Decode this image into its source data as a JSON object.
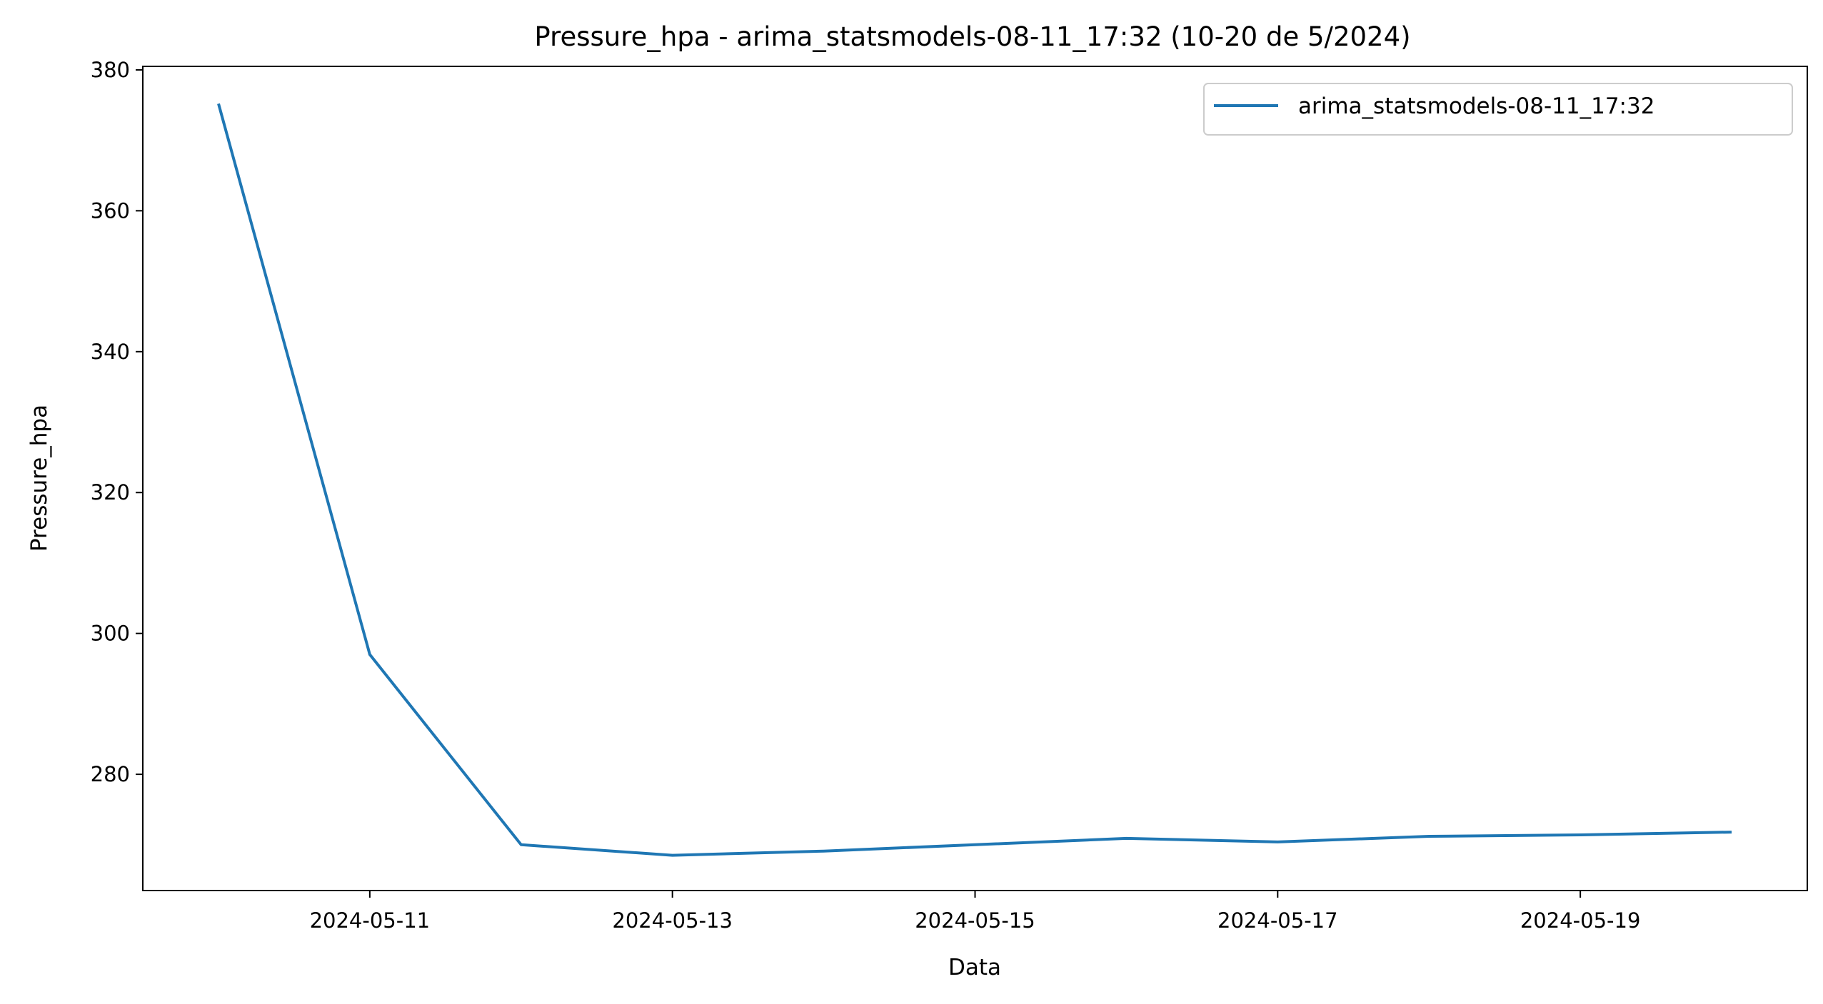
{
  "chart_data": {
    "type": "line",
    "title": "Pressure_hpa - arima_statsmodels-08-11_17:32 (10-20 de 5/2024)",
    "xlabel": "Data",
    "ylabel": "Pressure_hpa",
    "x": [
      "2024-05-10",
      "2024-05-11",
      "2024-05-12",
      "2024-05-13",
      "2024-05-14",
      "2024-05-15",
      "2024-05-16",
      "2024-05-17",
      "2024-05-18",
      "2024-05-19",
      "2024-05-20"
    ],
    "series": [
      {
        "name": "arima_statsmodels-08-11_17:32",
        "color": "#1f77b4",
        "values": [
          375.2,
          297.0,
          270.0,
          268.5,
          269.1,
          270.0,
          270.9,
          270.4,
          271.2,
          271.4,
          271.8
        ]
      }
    ],
    "xticks": [
      "2024-05-11",
      "2024-05-13",
      "2024-05-15",
      "2024-05-17",
      "2024-05-19"
    ],
    "yticks": [
      280,
      300,
      320,
      340,
      360,
      380
    ],
    "ylim": [
      263.5,
      380.5
    ],
    "xlim": [
      "2024-05-09T12:00",
      "2024-05-20T12:00"
    ],
    "grid": false,
    "legend_position": "top-right"
  }
}
